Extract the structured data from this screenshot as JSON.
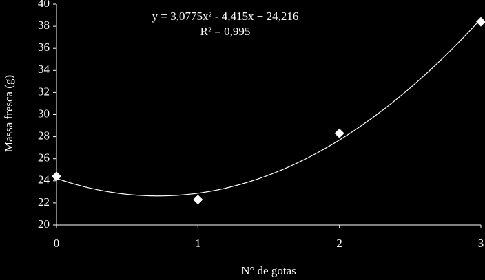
{
  "chart_data": {
    "type": "scatter",
    "xlabel": "N° de gotas",
    "ylabel": "Massa fresca (g)",
    "annotations": [
      "y = 3,0775x² - 4,415x + 24,216",
      "R² = 0,995"
    ],
    "series": [
      {
        "color": "#ffffff",
        "x": [
          0,
          1,
          2,
          3
        ],
        "values": [
          24.4,
          22.3,
          28.3,
          38.4
        ]
      }
    ],
    "trendline": {
      "color": "#ffffff",
      "coefficients": [
        3.0775,
        -4.415,
        24.216
      ]
    },
    "xlim": [
      0,
      3
    ],
    "xticks": [
      0,
      1,
      2,
      3
    ],
    "ylim": [
      20,
      40
    ],
    "yticks": [
      20,
      22,
      24,
      26,
      28,
      30,
      32,
      34,
      36,
      38,
      40
    ]
  }
}
